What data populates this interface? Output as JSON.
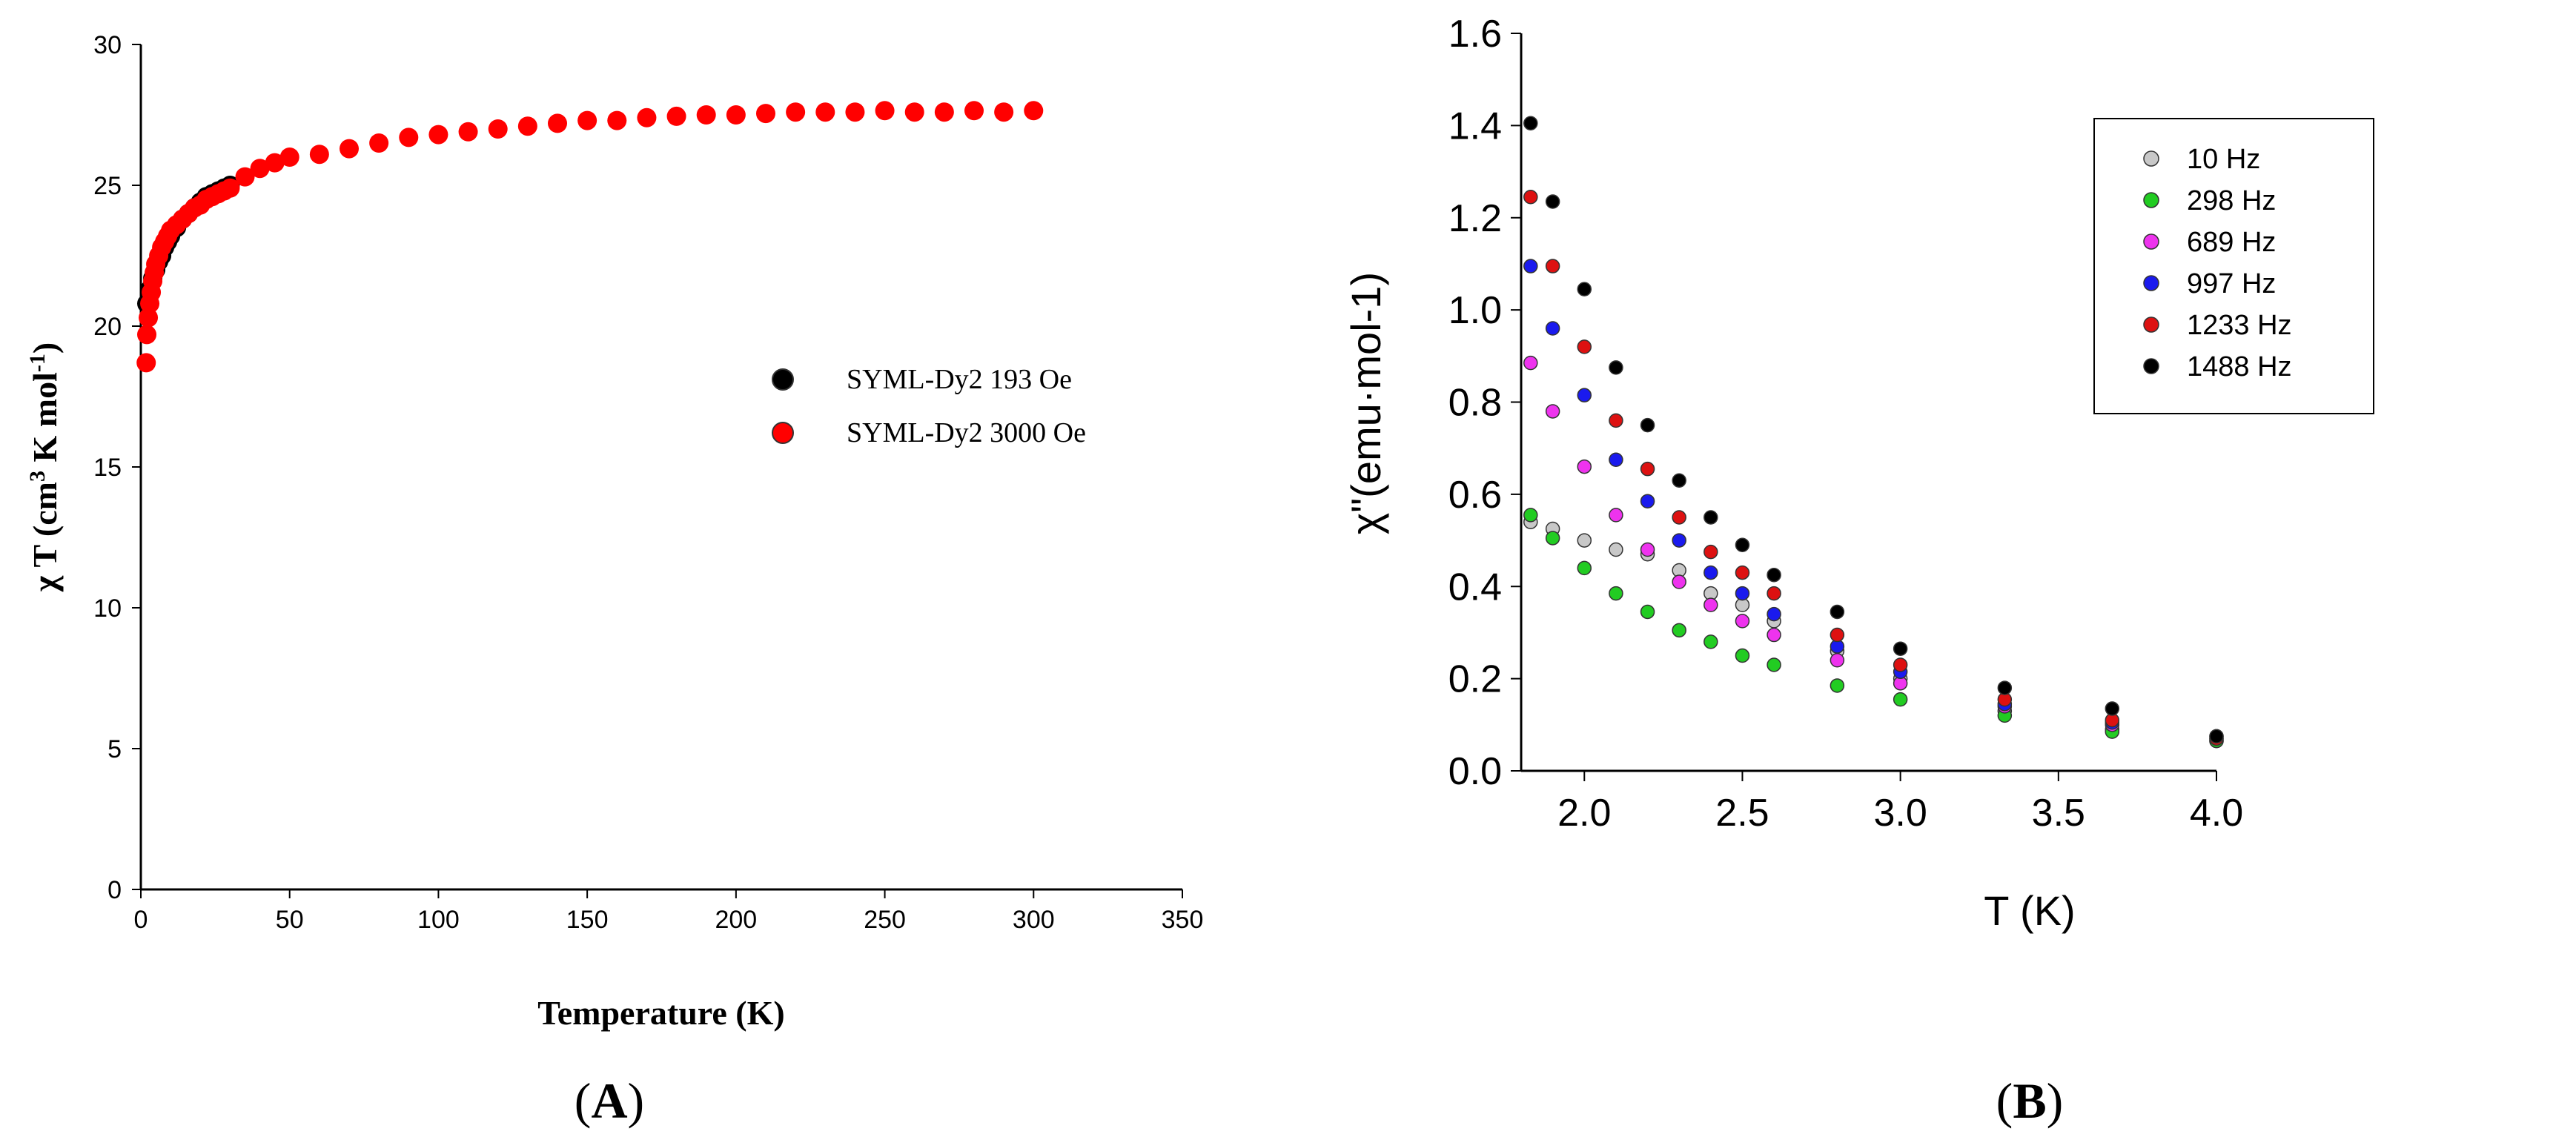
{
  "chart_data": [
    {
      "panel": "A",
      "type": "scatter",
      "ylabel_main": "χ T (cm",
      "ylabel_sup1": "3",
      "ylabel_mid": " K mol",
      "ylabel_sup2": "-1",
      "ylabel_end": ")",
      "xlabel": "Temperature (K)",
      "xlim": [
        0,
        350
      ],
      "ylim": [
        0,
        30
      ],
      "xticks": [
        "0",
        "50",
        "100",
        "150",
        "200",
        "250",
        "300",
        "350"
      ],
      "yticks": [
        "0",
        "5",
        "10",
        "15",
        "20",
        "25",
        "30"
      ],
      "legend_position": "center-right",
      "series": [
        {
          "name": "SYML-Dy2 193 Oe",
          "color": "#000000",
          "x": [
            2,
            3,
            4,
            5,
            6,
            7,
            8,
            9,
            10,
            12,
            14,
            16,
            18,
            20,
            22,
            24,
            26,
            28,
            30
          ],
          "y": [
            20.8,
            21.3,
            21.7,
            22.0,
            22.3,
            22.5,
            22.8,
            23.0,
            23.2,
            23.5,
            23.8,
            24.0,
            24.2,
            24.4,
            24.6,
            24.7,
            24.8,
            24.9,
            25.0
          ]
        },
        {
          "name": "SYML-Dy2 3000 Oe",
          "color": "#ff0000",
          "x": [
            1.8,
            2,
            2.5,
            3,
            3.5,
            4,
            4.5,
            5,
            6,
            7,
            8,
            9,
            10,
            12,
            14,
            16,
            18,
            20,
            22,
            24,
            26,
            28,
            30,
            35,
            40,
            45,
            50,
            60,
            70,
            80,
            90,
            100,
            110,
            120,
            130,
            140,
            150,
            160,
            170,
            180,
            190,
            200,
            210,
            220,
            230,
            240,
            250,
            260,
            270,
            280,
            290,
            300
          ],
          "y": [
            18.7,
            19.7,
            20.3,
            20.8,
            21.2,
            21.6,
            21.9,
            22.2,
            22.5,
            22.8,
            23.0,
            23.2,
            23.4,
            23.6,
            23.8,
            24.0,
            24.2,
            24.3,
            24.5,
            24.6,
            24.7,
            24.8,
            24.9,
            25.3,
            25.6,
            25.8,
            26.0,
            26.1,
            26.3,
            26.5,
            26.7,
            26.8,
            26.9,
            27.0,
            27.1,
            27.2,
            27.3,
            27.3,
            27.4,
            27.45,
            27.5,
            27.5,
            27.55,
            27.6,
            27.6,
            27.6,
            27.65,
            27.6,
            27.6,
            27.65,
            27.6,
            27.65
          ]
        }
      ],
      "caption_open": "(",
      "caption_letter": "A",
      "caption_close": ")"
    },
    {
      "panel": "B",
      "type": "scatter",
      "ylabel": "χ\"(emu·mol-1)",
      "xlabel": "T (K)",
      "xlim": [
        1.8,
        4.0
      ],
      "ylim": [
        0.0,
        1.6
      ],
      "xticks": [
        "2.0",
        "2.5",
        "3.0",
        "3.5",
        "4.0"
      ],
      "yticks": [
        "0.0",
        "0.2",
        "0.4",
        "0.6",
        "0.8",
        "1.0",
        "1.2",
        "1.4",
        "1.6"
      ],
      "legend_position": "top-right",
      "x": [
        1.83,
        1.9,
        2.0,
        2.1,
        2.2,
        2.3,
        2.4,
        2.5,
        2.6,
        2.8,
        3.0,
        3.33,
        3.67,
        4.0
      ],
      "series": [
        {
          "name": "10 Hz",
          "color": "#c8c8c8",
          "y": [
            0.54,
            0.525,
            0.5,
            0.48,
            0.47,
            0.435,
            0.385,
            0.36,
            0.325,
            0.26,
            0.2,
            0.13,
            0.09,
            0.065
          ]
        },
        {
          "name": "298 Hz",
          "color": "#22cc22",
          "y": [
            0.555,
            0.505,
            0.44,
            0.385,
            0.345,
            0.305,
            0.28,
            0.25,
            0.23,
            0.185,
            0.155,
            0.12,
            0.085,
            0.065
          ]
        },
        {
          "name": "689 Hz",
          "color": "#ee33ee",
          "y": [
            0.885,
            0.78,
            0.66,
            0.555,
            0.48,
            0.41,
            0.36,
            0.325,
            0.295,
            0.24,
            0.19,
            0.14,
            0.1,
            0.075
          ]
        },
        {
          "name": "997 Hz",
          "color": "#1a1aee",
          "y": [
            1.095,
            0.96,
            0.815,
            0.675,
            0.585,
            0.5,
            0.43,
            0.385,
            0.34,
            0.27,
            0.215,
            0.145,
            0.105,
            0.07
          ]
        },
        {
          "name": "1233 Hz",
          "color": "#dd1111",
          "y": [
            1.245,
            1.095,
            0.92,
            0.76,
            0.655,
            0.55,
            0.475,
            0.43,
            0.385,
            0.295,
            0.23,
            0.155,
            0.11,
            0.07
          ]
        },
        {
          "name": "1488 Hz",
          "color": "#000000",
          "y": [
            1.405,
            1.235,
            1.045,
            0.875,
            0.75,
            0.63,
            0.55,
            0.49,
            0.425,
            0.345,
            0.265,
            0.18,
            0.135,
            0.075
          ]
        }
      ],
      "caption_open": "(",
      "caption_letter": "B",
      "caption_close": ")"
    }
  ]
}
